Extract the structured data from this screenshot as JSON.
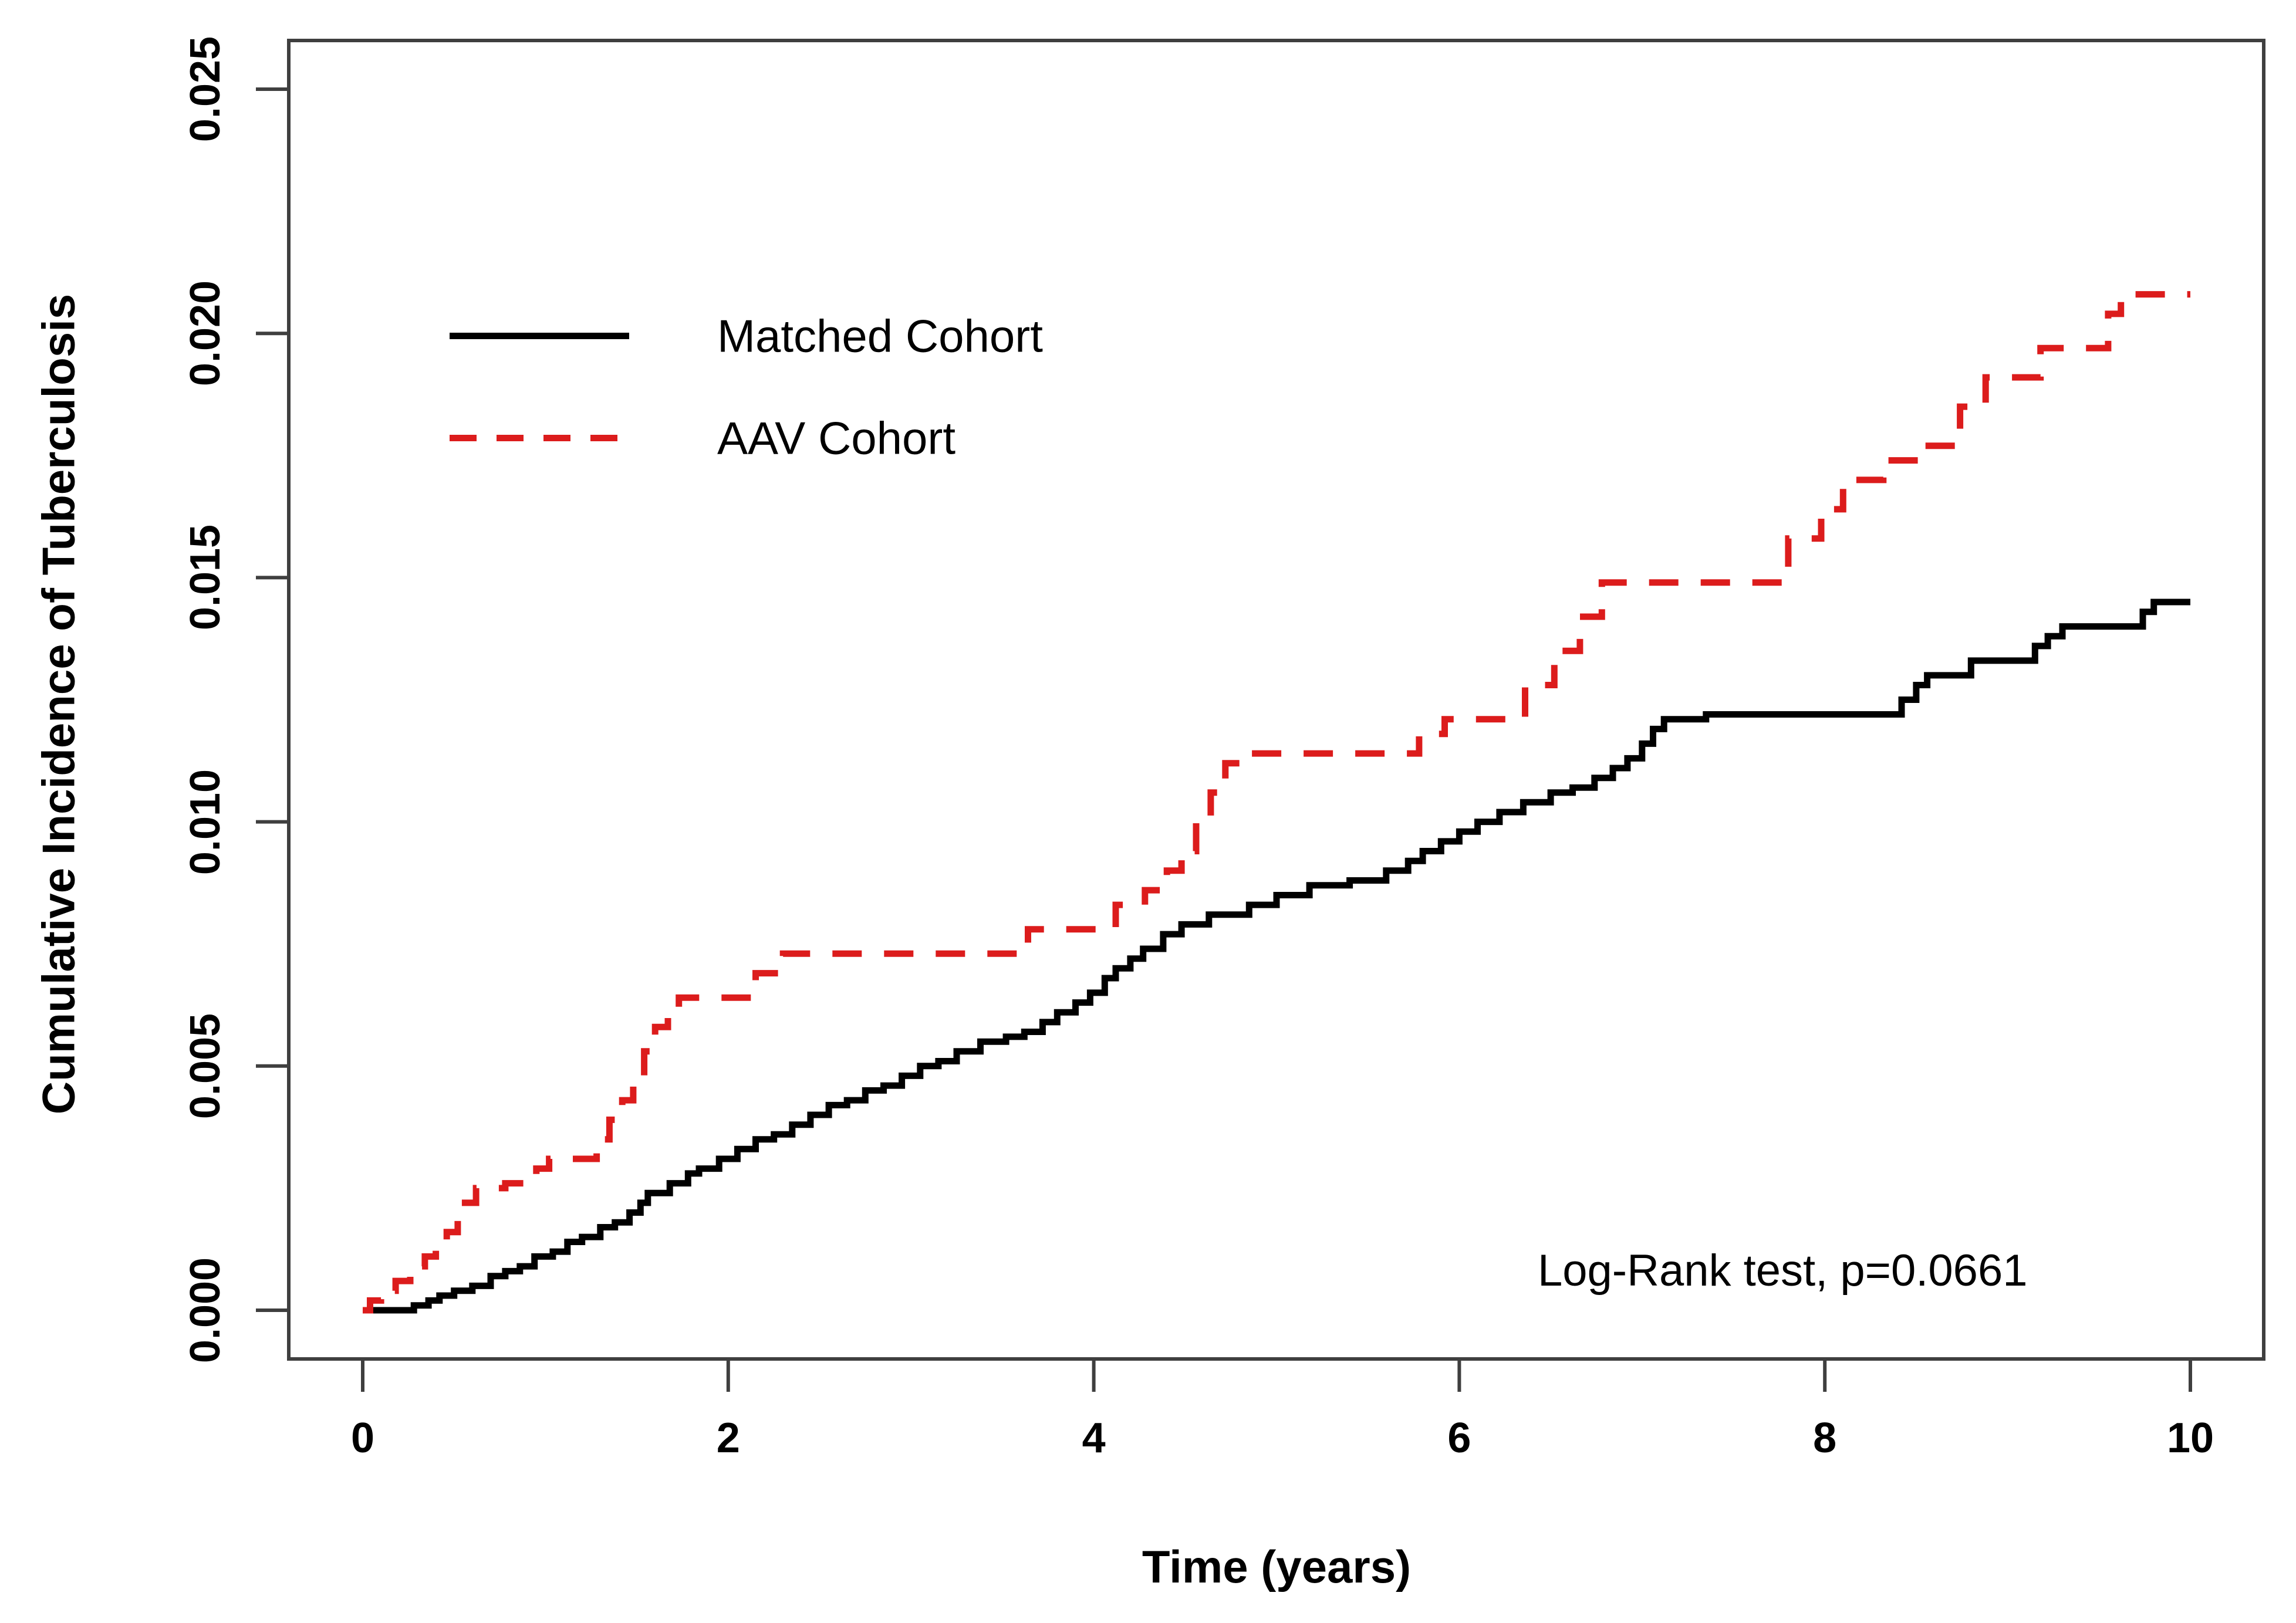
{
  "figure": {
    "type_label": "cumulative-incidence-step-chart",
    "background": "#ffffff",
    "frame_color": "#3f3f3f",
    "text_color": "#000000"
  },
  "chart_data": {
    "type": "line",
    "subtype": "step-cumulative-incidence",
    "title": "",
    "xlabel": "Time (years)",
    "ylabel": "Cumulative Incidence of Tuberculosis",
    "xlim": [
      0,
      10
    ],
    "ylim": [
      0,
      0.025
    ],
    "grid": "off",
    "legend_position": "upper-left-inside",
    "x_ticks": [
      0,
      2,
      4,
      6,
      8,
      10
    ],
    "x_tick_labels": [
      "0",
      "2",
      "4",
      "6",
      "8",
      "10"
    ],
    "y_ticks": [
      0,
      0.005,
      0.01,
      0.015,
      0.02,
      0.025
    ],
    "y_tick_labels": [
      "0.000",
      "0.005",
      "0.010",
      "0.015",
      "0.020",
      "0.025"
    ],
    "annotation": "Log-Rank test, p=0.0661",
    "legend": [
      {
        "label": "Matched Cohort",
        "color": "#000000",
        "line_style": "solid"
      },
      {
        "label": "AAV Cohort",
        "color": "#dc1c1c",
        "line_style": "dashed"
      }
    ],
    "series": [
      {
        "name": "Matched Cohort",
        "color": "#000000",
        "line_style": "solid",
        "step": true,
        "points": [
          [
            0,
            0
          ],
          [
            0.28,
            0.0001
          ],
          [
            0.36,
            0.0002
          ],
          [
            0.42,
            0.0003
          ],
          [
            0.5,
            0.0004
          ],
          [
            0.6,
            0.0005
          ],
          [
            0.7,
            0.0007
          ],
          [
            0.78,
            0.0008
          ],
          [
            0.86,
            0.0009
          ],
          [
            0.94,
            0.0011
          ],
          [
            1.04,
            0.0012
          ],
          [
            1.12,
            0.0014
          ],
          [
            1.2,
            0.0015
          ],
          [
            1.3,
            0.0017
          ],
          [
            1.38,
            0.0018
          ],
          [
            1.46,
            0.002
          ],
          [
            1.52,
            0.0022
          ],
          [
            1.56,
            0.0024
          ],
          [
            1.68,
            0.0026
          ],
          [
            1.78,
            0.0028
          ],
          [
            1.84,
            0.0029
          ],
          [
            1.95,
            0.0031
          ],
          [
            2.05,
            0.0033
          ],
          [
            2.15,
            0.0035
          ],
          [
            2.25,
            0.0036
          ],
          [
            2.35,
            0.0038
          ],
          [
            2.45,
            0.004
          ],
          [
            2.55,
            0.0042
          ],
          [
            2.65,
            0.0043
          ],
          [
            2.75,
            0.0045
          ],
          [
            2.85,
            0.0046
          ],
          [
            2.95,
            0.0048
          ],
          [
            3.05,
            0.005
          ],
          [
            3.15,
            0.0051
          ],
          [
            3.25,
            0.0053
          ],
          [
            3.38,
            0.0055
          ],
          [
            3.52,
            0.0056
          ],
          [
            3.62,
            0.0057
          ],
          [
            3.72,
            0.0059
          ],
          [
            3.8,
            0.0061
          ],
          [
            3.9,
            0.0063
          ],
          [
            3.98,
            0.0065
          ],
          [
            4.06,
            0.0068
          ],
          [
            4.12,
            0.007
          ],
          [
            4.2,
            0.0072
          ],
          [
            4.27,
            0.0074
          ],
          [
            4.38,
            0.0077
          ],
          [
            4.48,
            0.0079
          ],
          [
            4.63,
            0.0081
          ],
          [
            4.85,
            0.0083
          ],
          [
            5.0,
            0.0085
          ],
          [
            5.18,
            0.0087
          ],
          [
            5.4,
            0.0088
          ],
          [
            5.6,
            0.009
          ],
          [
            5.72,
            0.0092
          ],
          [
            5.8,
            0.0094
          ],
          [
            5.9,
            0.0096
          ],
          [
            6.0,
            0.0098
          ],
          [
            6.1,
            0.01
          ],
          [
            6.22,
            0.0102
          ],
          [
            6.35,
            0.0104
          ],
          [
            6.5,
            0.0106
          ],
          [
            6.62,
            0.0107
          ],
          [
            6.74,
            0.0109
          ],
          [
            6.84,
            0.0111
          ],
          [
            6.92,
            0.0113
          ],
          [
            7.0,
            0.0116
          ],
          [
            7.06,
            0.0119
          ],
          [
            7.12,
            0.0121
          ],
          [
            7.35,
            0.0122
          ],
          [
            8.42,
            0.0125
          ],
          [
            8.5,
            0.0128
          ],
          [
            8.56,
            0.013
          ],
          [
            8.8,
            0.0133
          ],
          [
            9.15,
            0.0136
          ],
          [
            9.22,
            0.0138
          ],
          [
            9.3,
            0.014
          ],
          [
            9.74,
            0.0143
          ],
          [
            9.8,
            0.0145
          ],
          [
            10,
            0.0145
          ]
        ]
      },
      {
        "name": "AAV Cohort",
        "color": "#dc1c1c",
        "line_style": "dashed",
        "step": true,
        "points": [
          [
            0,
            0
          ],
          [
            0.04,
            0.0002
          ],
          [
            0.1,
            0.0004
          ],
          [
            0.18,
            0.0006
          ],
          [
            0.26,
            0.0009
          ],
          [
            0.34,
            0.0011
          ],
          [
            0.4,
            0.0013
          ],
          [
            0.46,
            0.0016
          ],
          [
            0.52,
            0.0019
          ],
          [
            0.56,
            0.0022
          ],
          [
            0.62,
            0.0025
          ],
          [
            0.78,
            0.0026
          ],
          [
            0.95,
            0.0029
          ],
          [
            1.02,
            0.0031
          ],
          [
            1.28,
            0.0035
          ],
          [
            1.35,
            0.0039
          ],
          [
            1.42,
            0.0043
          ],
          [
            1.48,
            0.0048
          ],
          [
            1.54,
            0.0053
          ],
          [
            1.6,
            0.0058
          ],
          [
            1.67,
            0.0062
          ],
          [
            1.73,
            0.0064
          ],
          [
            2.15,
            0.0069
          ],
          [
            2.3,
            0.0073
          ],
          [
            3.64,
            0.0078
          ],
          [
            4.12,
            0.0083
          ],
          [
            4.28,
            0.0086
          ],
          [
            4.4,
            0.009
          ],
          [
            4.48,
            0.0094
          ],
          [
            4.56,
            0.01
          ],
          [
            4.64,
            0.0106
          ],
          [
            4.72,
            0.0112
          ],
          [
            4.85,
            0.0114
          ],
          [
            5.78,
            0.0118
          ],
          [
            5.92,
            0.0121
          ],
          [
            6.36,
            0.0128
          ],
          [
            6.52,
            0.0135
          ],
          [
            6.66,
            0.0142
          ],
          [
            6.78,
            0.0149
          ],
          [
            7.8,
            0.0158
          ],
          [
            7.98,
            0.0164
          ],
          [
            8.1,
            0.017
          ],
          [
            8.32,
            0.0174
          ],
          [
            8.52,
            0.0177
          ],
          [
            8.74,
            0.0185
          ],
          [
            8.88,
            0.0191
          ],
          [
            9.18,
            0.0197
          ],
          [
            9.55,
            0.0204
          ],
          [
            9.62,
            0.0208
          ],
          [
            10,
            0.0208
          ]
        ]
      }
    ]
  }
}
